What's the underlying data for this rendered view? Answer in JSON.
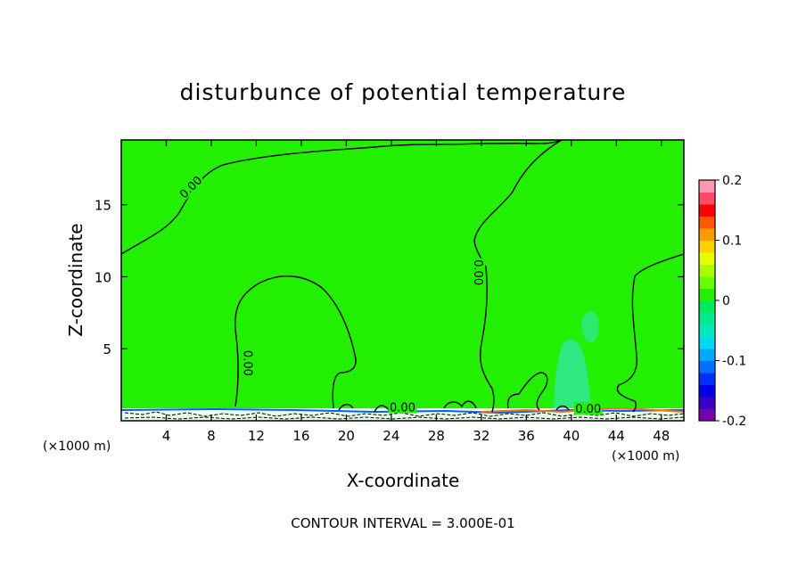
{
  "chart_data": {
    "type": "contour",
    "title": "disturbunce of potential temperature",
    "xlabel": "X-coordinate",
    "ylabel": "Z-coordinate",
    "x_unit": "(×1000 m)",
    "x_ticks": [
      4,
      8,
      12,
      16,
      20,
      24,
      28,
      32,
      36,
      40,
      44,
      48
    ],
    "y_ticks": [
      5,
      10,
      15
    ],
    "xlim": [
      0,
      50
    ],
    "ylim": [
      0,
      19.5
    ],
    "contour_labels": [
      {
        "text": "0.00",
        "x": 6.2,
        "z": 16.2,
        "angle": -45
      },
      {
        "text": "0.00",
        "x": 11.2,
        "z": 4.0,
        "angle": 90
      },
      {
        "text": "0.00",
        "x": 31.7,
        "z": 10.3,
        "angle": 90
      },
      {
        "text": "0.00",
        "x": 25.0,
        "z": 0.9,
        "angle": 0
      },
      {
        "text": "0.00",
        "x": 41.5,
        "z": 0.8,
        "angle": 0
      }
    ],
    "colorbar": {
      "min": -0.2,
      "max": 0.2,
      "tick_labels": [
        "0.2",
        "0.1",
        "0",
        "-0.1",
        "-0.2"
      ],
      "tick_values": [
        0.2,
        0.1,
        0.0,
        -0.1,
        -0.2
      ],
      "colors": [
        "#7a00aa",
        "#3a00c8",
        "#0000e6",
        "#0030ff",
        "#0070ff",
        "#00a8ff",
        "#00d8f0",
        "#00e8c0",
        "#00e890",
        "#00e860",
        "#22f000",
        "#66ff00",
        "#a8ff00",
        "#e6ff00",
        "#ffd000",
        "#ff9a00",
        "#ff5a00",
        "#ff0000",
        "#ff4a6a",
        "#ff9ab0"
      ]
    },
    "footer": "CONTOUR INTERVAL = 3.000E-01"
  }
}
